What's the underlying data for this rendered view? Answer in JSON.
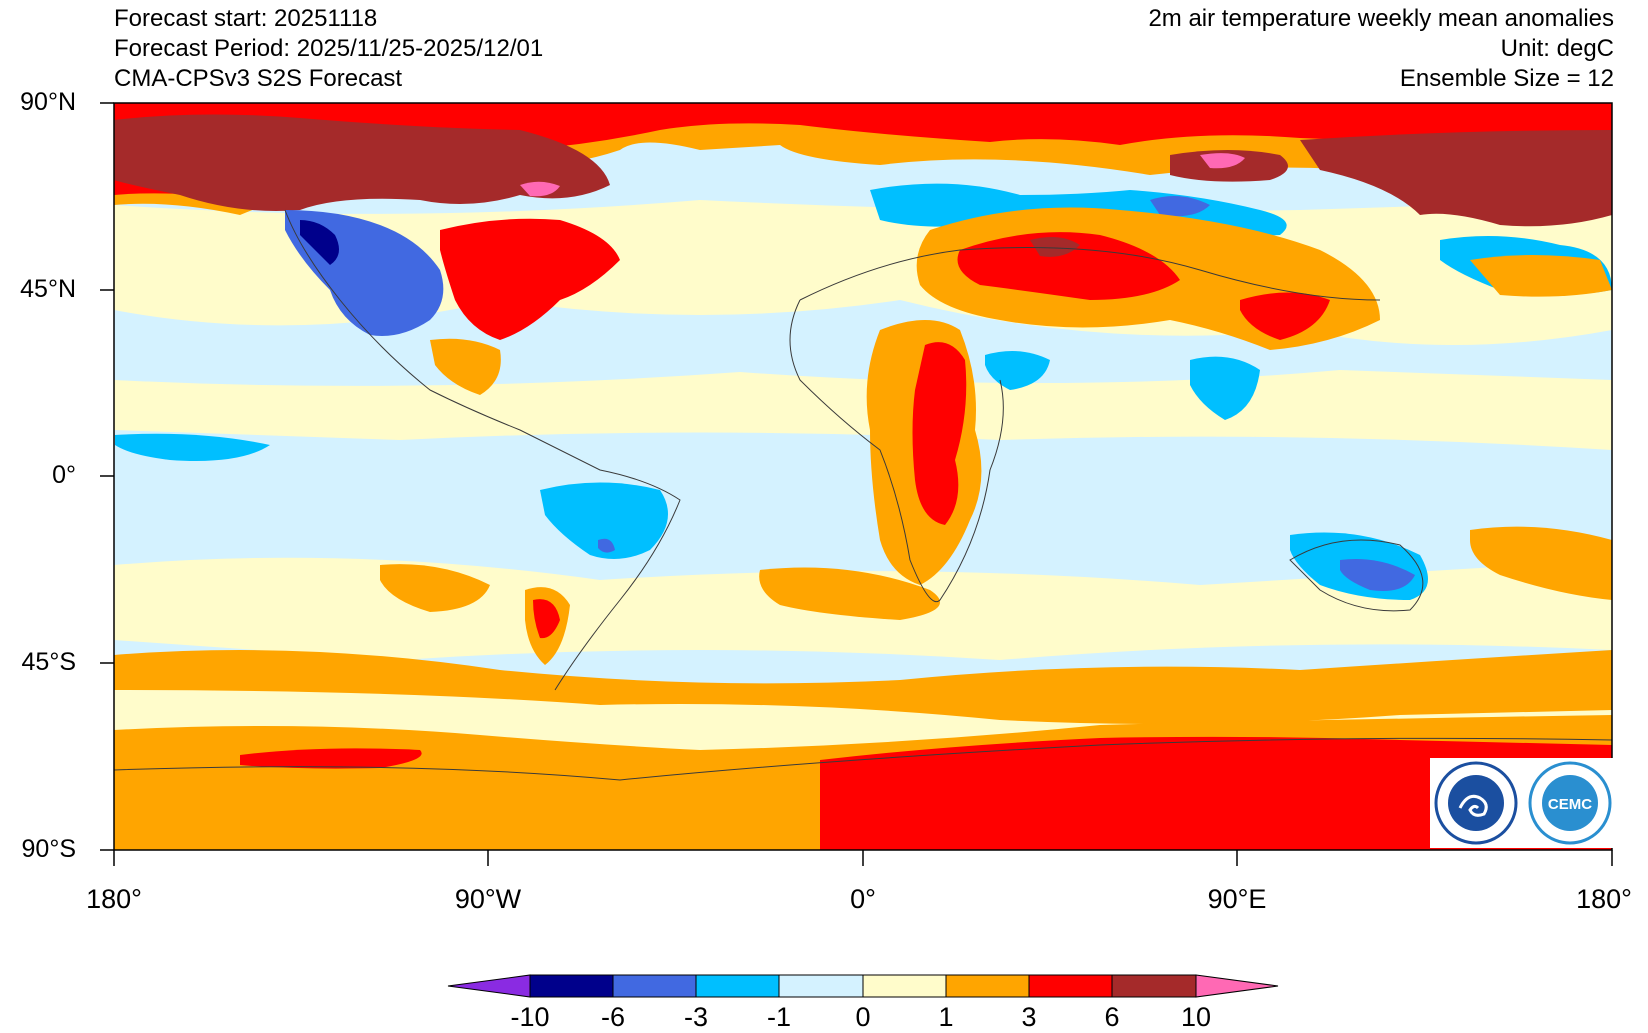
{
  "header": {
    "forecast_start": "Forecast start: 20251118",
    "forecast_period": "Forecast Period: 2025/11/25-2025/12/01",
    "model": "CMA-CPSv3 S2S Forecast",
    "variable": "2m air temperature weekly mean anomalies",
    "unit": "Unit: degC",
    "ensemble": "Ensemble Size = 12"
  },
  "axes": {
    "lat_labels": [
      "90°N",
      "45°N",
      "0°",
      "45°S",
      "90°S"
    ],
    "lon_labels": [
      "180°",
      "90°W",
      "0°",
      "90°E",
      "180°"
    ]
  },
  "colorbar": {
    "levels": [
      "-10",
      "-6",
      "-3",
      "-1",
      "0",
      "1",
      "3",
      "6",
      "10"
    ],
    "colors": [
      "#8a2be2",
      "#00008b",
      "#4169e1",
      "#00bfff",
      "#d4f2ff",
      "#fffccb",
      "#ffa500",
      "#ff0000",
      "#a52a2a",
      "#ff69b4"
    ]
  },
  "logos": {
    "cma": "China Meteorological Administration",
    "cemc": "CEMC"
  }
}
